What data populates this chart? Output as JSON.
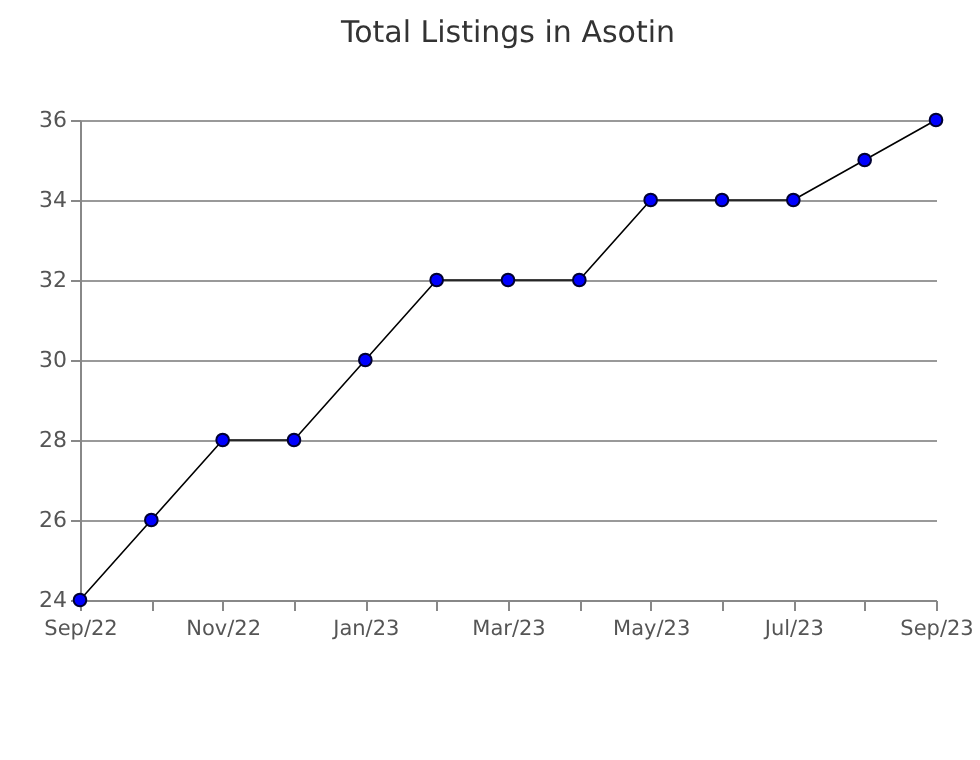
{
  "chart_data": {
    "type": "line",
    "title": "Total Listings in Asotin",
    "categories": [
      "Sep/22",
      null,
      "Nov/22",
      null,
      "Jan/23",
      null,
      "Mar/23",
      null,
      "May/23",
      null,
      "Jul/23",
      null,
      "Sep/23"
    ],
    "series": [
      {
        "color": "#0000ff",
        "values": [
          24,
          26,
          28,
          28,
          30,
          32,
          32,
          32,
          34,
          34,
          34,
          35,
          36
        ]
      }
    ],
    "ylim": [
      24,
      36
    ],
    "yticks": [
      24,
      26,
      28,
      30,
      32,
      34,
      36
    ],
    "grid": "y",
    "marker": "circle",
    "line_style": "solid"
  }
}
